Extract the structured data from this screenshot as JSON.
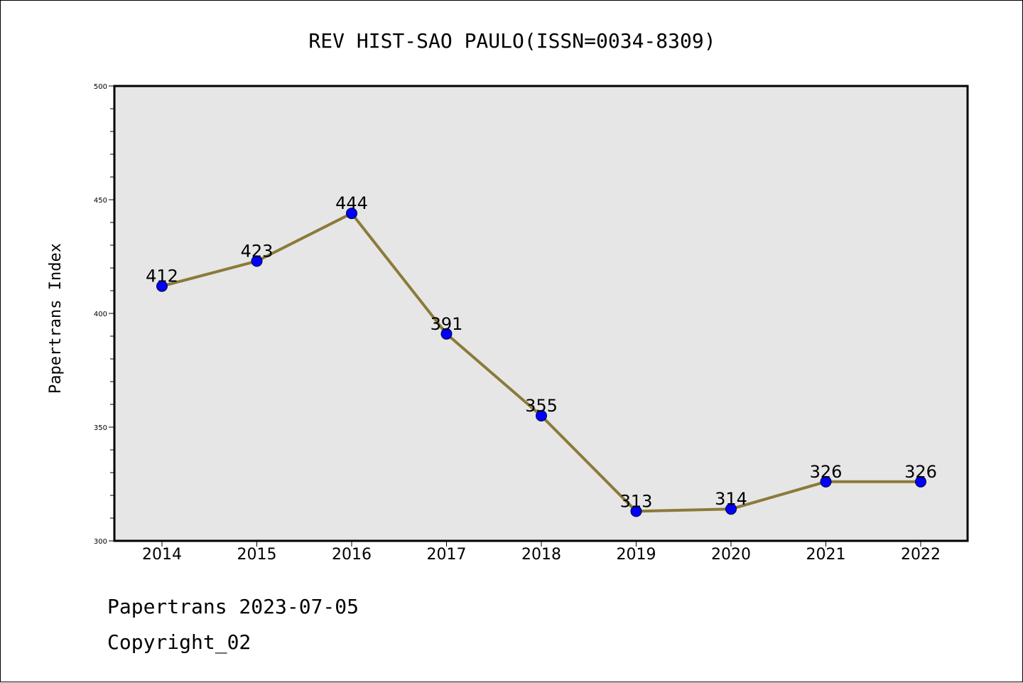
{
  "chart_data": {
    "type": "line",
    "title": "REV HIST-SAO PAULO(ISSN=0034-8309)",
    "xlabel": "",
    "ylabel": "Papertrans Index",
    "categories": [
      "2014",
      "2015",
      "2016",
      "2017",
      "2018",
      "2019",
      "2020",
      "2021",
      "2022"
    ],
    "series": [
      {
        "values": [
          412,
          423,
          444,
          391,
          355,
          313,
          314,
          326,
          326
        ]
      }
    ],
    "ylim": [
      300,
      500
    ],
    "yticks": [
      "300",
      "350",
      "400",
      "450",
      "500"
    ],
    "line_color": "#8b7a3a",
    "marker_color": "#0000ff",
    "plot_background": "#e6e6e6",
    "grid": false,
    "legend": "none"
  },
  "footer": {
    "line1": "Papertrans 2023-07-05",
    "line2": "Copyright_02"
  }
}
